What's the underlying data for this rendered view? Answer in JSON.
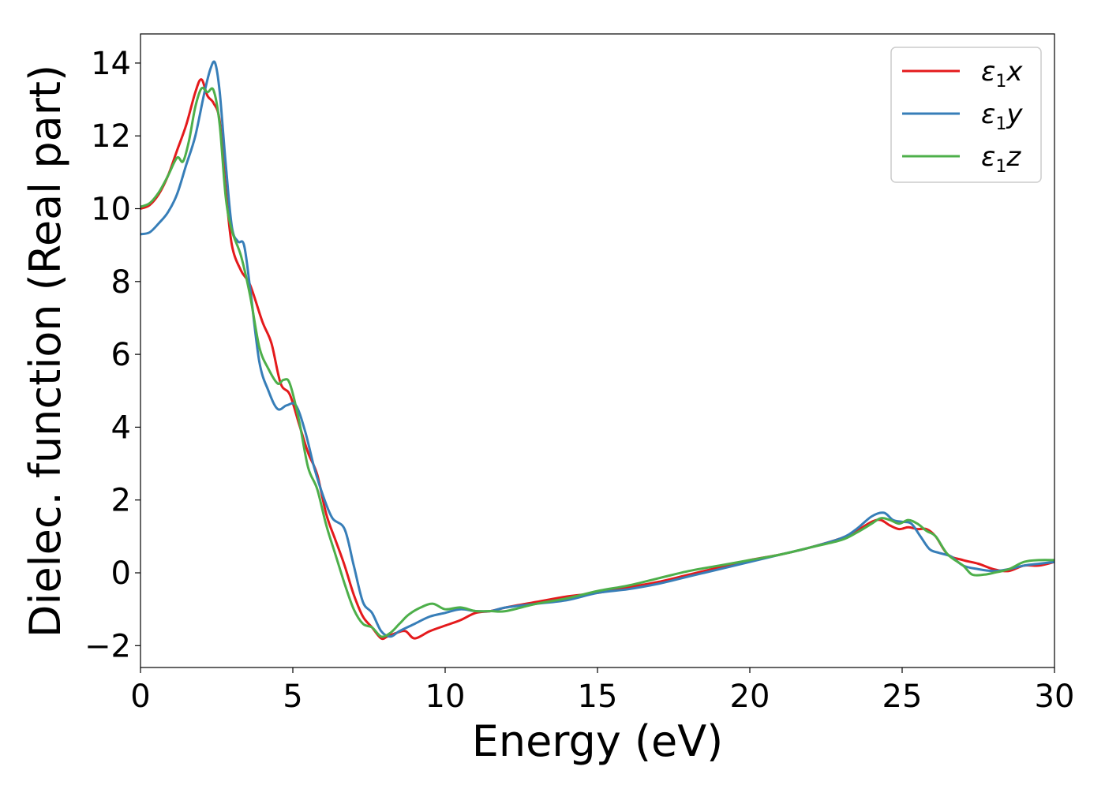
{
  "chart_data": {
    "type": "line",
    "title": "",
    "xlabel": "Energy (eV)",
    "ylabel": "Dielec. function (Real part)",
    "xlim": [
      0,
      30
    ],
    "ylim": [
      -2.6,
      14.8
    ],
    "xticks": [
      0,
      5,
      10,
      15,
      20,
      25,
      30
    ],
    "xtick_labels": [
      "0",
      "5",
      "10",
      "15",
      "20",
      "25",
      "30"
    ],
    "yticks": [
      -2,
      0,
      2,
      4,
      6,
      8,
      10,
      12,
      14
    ],
    "ytick_labels": [
      "−2",
      "0",
      "2",
      "4",
      "6",
      "8",
      "10",
      "12",
      "14"
    ],
    "grid": false,
    "legend_position": "top-right",
    "series": [
      {
        "name": "ε₁x",
        "legend_main": "ε",
        "legend_sub": "1",
        "legend_suffix": "x",
        "color": "#e41a1c",
        "x": [
          0,
          0.3,
          0.6,
          0.9,
          1.2,
          1.5,
          1.8,
          2.0,
          2.2,
          2.4,
          2.6,
          2.8,
          3.0,
          3.3,
          3.6,
          4.0,
          4.3,
          4.6,
          4.9,
          5.2,
          5.5,
          5.8,
          6.1,
          6.4,
          6.7,
          7.0,
          7.3,
          7.6,
          7.9,
          8.1,
          8.4,
          8.7,
          9.0,
          9.5,
          10.0,
          10.5,
          11.0,
          11.5,
          12,
          13,
          14,
          15,
          16,
          17,
          18,
          19,
          20,
          21,
          22,
          23,
          23.5,
          24.0,
          24.3,
          24.6,
          24.9,
          25.2,
          25.5,
          25.8,
          26.1,
          26.5,
          27.0,
          27.5,
          28.0,
          28.5,
          29.0,
          29.5,
          30.0
        ],
        "y": [
          10.0,
          10.1,
          10.4,
          10.9,
          11.6,
          12.3,
          13.2,
          13.55,
          13.1,
          12.9,
          12.4,
          10.5,
          9.0,
          8.3,
          7.9,
          6.9,
          6.3,
          5.2,
          4.9,
          4.1,
          3.3,
          2.7,
          1.6,
          0.9,
          0.2,
          -0.6,
          -1.2,
          -1.5,
          -1.8,
          -1.75,
          -1.65,
          -1.6,
          -1.8,
          -1.6,
          -1.45,
          -1.3,
          -1.1,
          -1.05,
          -0.95,
          -0.8,
          -0.65,
          -0.55,
          -0.4,
          -0.25,
          -0.05,
          0.15,
          0.35,
          0.5,
          0.7,
          0.95,
          1.15,
          1.4,
          1.45,
          1.3,
          1.2,
          1.25,
          1.2,
          1.2,
          1.0,
          0.5,
          0.35,
          0.25,
          0.1,
          0.05,
          0.2,
          0.2,
          0.3
        ]
      },
      {
        "name": "ε₁y",
        "legend_main": "ε",
        "legend_sub": "1",
        "legend_suffix": "y",
        "color": "#377eb8",
        "x": [
          0,
          0.3,
          0.6,
          0.9,
          1.2,
          1.5,
          1.8,
          2.1,
          2.3,
          2.45,
          2.6,
          2.8,
          3.0,
          3.2,
          3.4,
          3.6,
          3.9,
          4.2,
          4.5,
          4.8,
          5.1,
          5.4,
          5.7,
          6.0,
          6.3,
          6.7,
          7.0,
          7.3,
          7.6,
          7.9,
          8.2,
          8.5,
          9.0,
          9.5,
          10.0,
          10.5,
          11.0,
          11.5,
          12,
          13,
          14,
          15,
          16,
          17,
          18,
          19,
          20,
          21,
          22,
          23,
          23.5,
          24.0,
          24.4,
          24.7,
          25.0,
          25.3,
          25.6,
          25.9,
          26.2,
          26.6,
          27.0,
          27.5,
          28.0,
          28.5,
          29.0,
          29.5,
          30.0
        ],
        "y": [
          9.3,
          9.35,
          9.6,
          9.9,
          10.4,
          11.2,
          12.0,
          13.2,
          13.85,
          14.0,
          13.2,
          11.2,
          9.5,
          9.1,
          9.0,
          7.8,
          5.8,
          5.0,
          4.5,
          4.6,
          4.6,
          3.9,
          2.9,
          2.1,
          1.5,
          1.2,
          0.2,
          -0.8,
          -1.1,
          -1.6,
          -1.75,
          -1.6,
          -1.4,
          -1.2,
          -1.1,
          -1.0,
          -1.05,
          -1.05,
          -0.95,
          -0.85,
          -0.75,
          -0.55,
          -0.45,
          -0.3,
          -0.1,
          0.1,
          0.3,
          0.5,
          0.7,
          0.95,
          1.2,
          1.55,
          1.65,
          1.45,
          1.4,
          1.35,
          1.0,
          0.65,
          0.55,
          0.45,
          0.2,
          0.1,
          0.05,
          0.1,
          0.2,
          0.25,
          0.3
        ]
      },
      {
        "name": "ε₁z",
        "legend_main": "ε",
        "legend_sub": "1",
        "legend_suffix": "z",
        "color": "#4daf4a",
        "x": [
          0,
          0.3,
          0.6,
          0.9,
          1.2,
          1.4,
          1.6,
          1.8,
          2.0,
          2.2,
          2.4,
          2.6,
          2.8,
          3.0,
          3.3,
          3.6,
          3.9,
          4.2,
          4.5,
          4.7,
          4.9,
          5.2,
          5.5,
          5.8,
          6.1,
          6.4,
          6.7,
          7.0,
          7.3,
          7.6,
          7.9,
          8.2,
          8.5,
          8.8,
          9.2,
          9.6,
          10.0,
          10.5,
          11.0,
          11.5,
          12,
          13,
          14,
          15,
          16,
          17,
          18,
          19,
          20,
          21,
          22,
          23,
          23.5,
          24.0,
          24.3,
          24.6,
          24.9,
          25.2,
          25.5,
          25.8,
          26.1,
          26.5,
          27.0,
          27.3,
          27.7,
          28.0,
          28.5,
          29.0,
          29.5,
          30.0
        ],
        "y": [
          10.05,
          10.15,
          10.45,
          10.9,
          11.4,
          11.3,
          11.9,
          12.8,
          13.3,
          13.2,
          13.25,
          12.3,
          10.3,
          9.4,
          8.7,
          7.6,
          6.2,
          5.6,
          5.2,
          5.3,
          5.2,
          4.2,
          2.9,
          2.3,
          1.3,
          0.5,
          -0.3,
          -1.0,
          -1.4,
          -1.5,
          -1.75,
          -1.65,
          -1.4,
          -1.15,
          -0.95,
          -0.85,
          -1.0,
          -0.95,
          -1.05,
          -1.05,
          -1.05,
          -0.85,
          -0.7,
          -0.5,
          -0.35,
          -0.15,
          0.05,
          0.2,
          0.35,
          0.5,
          0.7,
          0.9,
          1.1,
          1.35,
          1.5,
          1.45,
          1.35,
          1.45,
          1.35,
          1.15,
          1.0,
          0.5,
          0.2,
          -0.05,
          -0.05,
          0.0,
          0.1,
          0.3,
          0.35,
          0.35
        ]
      }
    ]
  }
}
